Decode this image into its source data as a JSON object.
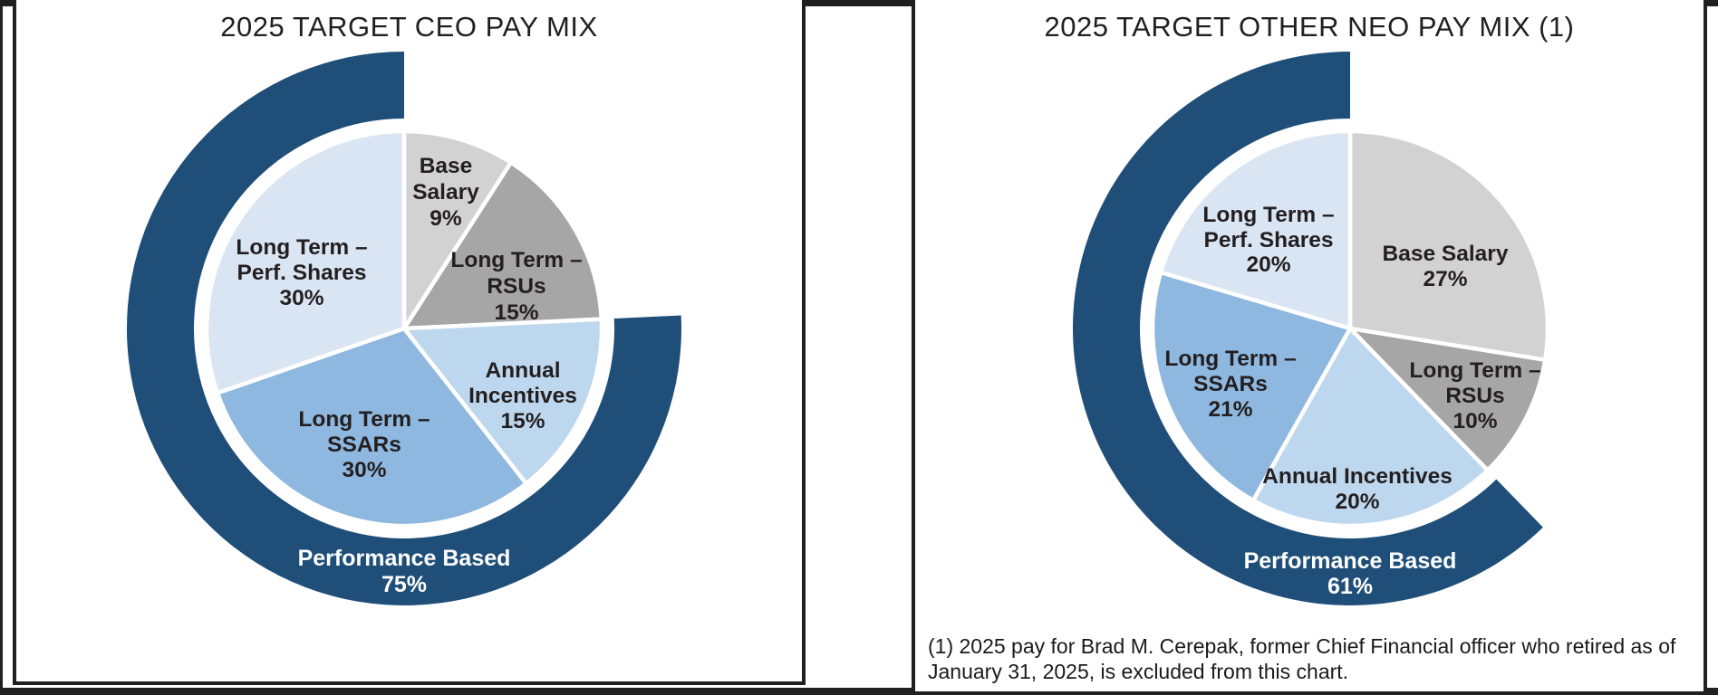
{
  "page": {
    "background": "#FFFFFF",
    "frame_color": "#221F20"
  },
  "chart_data": [
    {
      "id": "ceo",
      "type": "pie",
      "title": "2025 TARGET CEO PAY MIX",
      "units": "percent",
      "label_position": "inside",
      "slices": [
        {
          "id": "base_salary",
          "label": "Base Salary",
          "value": 9,
          "display": "9%",
          "label_lines": [
            "Base",
            "Salary",
            "9%"
          ],
          "color": "#D2D2D2"
        },
        {
          "id": "lt_rsus",
          "label": "Long Term – RSUs",
          "value": 15,
          "display": "15%",
          "label_lines": [
            "Long Term –",
            "RSUs",
            "15%"
          ],
          "color": "#A6A6A6"
        },
        {
          "id": "annual_incentives",
          "label": "Annual Incentives",
          "value": 15,
          "display": "15%",
          "label_lines": [
            "Annual",
            "Incentives",
            "15%"
          ],
          "color": "#BDD7EE"
        },
        {
          "id": "lt_ssars",
          "label": "Long Term – SSARs",
          "value": 30,
          "display": "30%",
          "label_lines": [
            "Long Term –",
            "SSARs",
            "30%"
          ],
          "color": "#8FB8E0"
        },
        {
          "id": "lt_perf_shares",
          "label": "Long Term – Perf. Shares",
          "value": 30,
          "display": "30%",
          "label_lines": [
            "Long Term –",
            "Perf. Shares",
            "30%"
          ],
          "color": "#DAE5F3"
        }
      ],
      "outer_ring": {
        "label": "Performance Based",
        "value": 75,
        "display": "75%",
        "label_lines": [
          "Performance Based",
          "75%"
        ],
        "covers": [
          "annual_incentives",
          "lt_ssars",
          "lt_perf_shares"
        ],
        "color": "#1F4E79",
        "text_color": "#FFFFFF"
      },
      "footnote_lines": []
    },
    {
      "id": "neo",
      "type": "pie",
      "title": "2025 TARGET OTHER NEO PAY MIX (1)",
      "units": "percent",
      "label_position": "inside",
      "slices": [
        {
          "id": "base_salary",
          "label": "Base Salary",
          "value": 27,
          "display": "27%",
          "label_lines": [
            "Base Salary",
            "27%"
          ],
          "color": "#D2D2D2"
        },
        {
          "id": "lt_rsus",
          "label": "Long Term – RSUs",
          "value": 10,
          "display": "10%",
          "label_lines": [
            "Long Term –",
            "RSUs",
            "10%"
          ],
          "color": "#A6A6A6"
        },
        {
          "id": "annual_incentives",
          "label": "Annual Incentives",
          "value": 20,
          "display": "20%",
          "label_lines": [
            "Annual Incentives",
            "20%"
          ],
          "color": "#BDD7EE"
        },
        {
          "id": "lt_ssars",
          "label": "Long Term – SSARs",
          "value": 21,
          "display": "21%",
          "label_lines": [
            "Long Term –",
            "SSARs",
            "21%"
          ],
          "color": "#8FB8E0"
        },
        {
          "id": "lt_perf_shares",
          "label": "Long Term – Perf. Shares",
          "value": 20,
          "display": "20%",
          "label_lines": [
            "Long Term –",
            "Perf. Shares",
            "20%"
          ],
          "color": "#DAE5F3"
        }
      ],
      "outer_ring": {
        "label": "Performance Based",
        "value": 61,
        "display": "61%",
        "label_lines": [
          "Performance Based",
          "61%"
        ],
        "covers": [
          "annual_incentives",
          "lt_ssars",
          "lt_perf_shares"
        ],
        "color": "#1F4E79",
        "text_color": "#FFFFFF"
      },
      "footnote_lines": [
        "(1) 2025 pay for Brad M. Cerepak, former Chief Financial officer who retired as of",
        "January 31, 2025, is excluded from this chart."
      ]
    }
  ]
}
